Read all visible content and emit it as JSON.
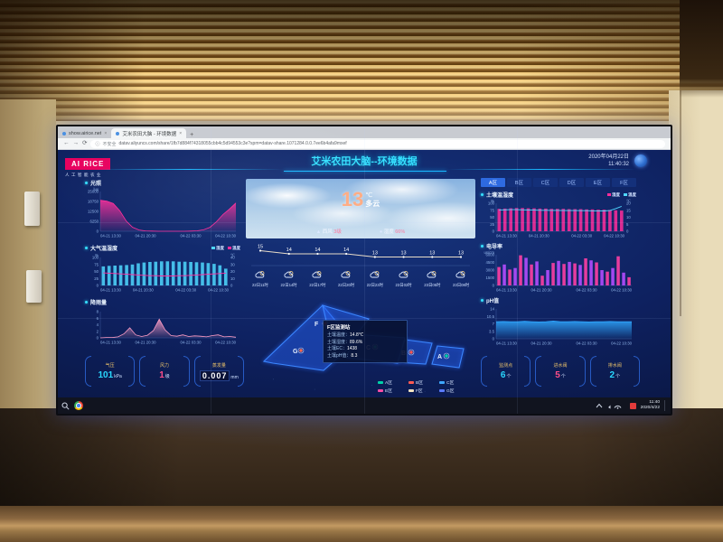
{
  "browser": {
    "tab1": {
      "title": "show.airice.net"
    },
    "tab2": {
      "title": "艾米农田大脑 - 环境数据"
    },
    "security_label": "不安全",
    "url": "datav.aliyuncs.com/share/1fb7d884f74318055cbb4c5d94553c3e?spm=datav-share.1071284.0.0.7ee6b4afa9mxef"
  },
  "header": {
    "logo": "AI RICE",
    "logo_sub": "人工智能农业",
    "title": "艾米农田大脑--环境数据",
    "date": "2020年04月22日",
    "time": "11:40:32"
  },
  "zone_tabs": {
    "items": [
      "A区",
      "B区",
      "C区",
      "D区",
      "E区",
      "F区"
    ],
    "selected": "A区"
  },
  "weather": {
    "temp": "13",
    "temp_unit": "℃",
    "condition": "多云",
    "wind_label": "西风",
    "wind_value": "3级",
    "humidity_label": "湿度",
    "humidity_value": "66%"
  },
  "forecast": {
    "values": [
      15,
      14,
      14,
      14,
      13,
      13,
      13,
      13
    ],
    "labels": [
      "22日11时",
      "22日14时",
      "22日17时",
      "22日20时",
      "22日23时",
      "23日02时",
      "23日05时",
      "23日08时"
    ],
    "icon": "partly-cloudy-icon"
  },
  "charts": {
    "light": {
      "type": "area",
      "title": "光照",
      "unit_left": "lux",
      "color": "#ff2d9b",
      "ylim": [
        0,
        25000
      ],
      "yticks": [
        0,
        6250,
        12500,
        18750,
        25000
      ],
      "x_labels": [
        "04-21 13:30",
        "04-21 20:30",
        "04-22 03:30",
        "04-22 10:30"
      ],
      "values": [
        19500,
        19000,
        17500,
        13000,
        6500,
        2500,
        800,
        200,
        100,
        0,
        0,
        0,
        0,
        0,
        100,
        300,
        900,
        2500,
        6000,
        10500,
        14000,
        17800
      ]
    },
    "atm": {
      "type": "bars_line",
      "title": "大气温湿度",
      "legend": [
        {
          "label": "湿度",
          "color": "#4fd8ff"
        },
        {
          "label": "温度",
          "color": "#ff2d9b"
        }
      ],
      "bar_color": "#4fd8ff",
      "line_color": "#ff2d9b",
      "unit_left": "%",
      "unit_right": "℃",
      "ylim_left": [
        0,
        100
      ],
      "yticks_left": [
        0,
        25,
        50,
        75,
        100
      ],
      "ylim_right": [
        0,
        40
      ],
      "yticks_right": [
        0,
        10,
        20,
        30,
        40
      ],
      "x_labels": [
        "04-21 13:30",
        "04-21 20:30",
        "04-22 03:30",
        "04-22 10:30"
      ],
      "bars": [
        68,
        70,
        71,
        72,
        73,
        75,
        79,
        82,
        84,
        85,
        86,
        86,
        86,
        85,
        85,
        84,
        83,
        82,
        80,
        77,
        72,
        60
      ],
      "line": [
        18,
        17.5,
        17,
        16.5,
        16,
        15.5,
        15,
        14.5,
        14,
        14,
        13.5,
        13.5,
        13.5,
        14,
        14,
        14.5,
        15,
        15.5,
        16,
        16.5,
        17,
        17.5
      ]
    },
    "rain": {
      "type": "area",
      "title": "降雨量",
      "color": "#ff9ec6",
      "ylim": [
        0,
        8
      ],
      "yticks": [
        0,
        2,
        4,
        6,
        8
      ],
      "x_labels": [
        "04-21 13:30",
        "04-21 20:30",
        "04-22 03:30",
        "04-22 10:30"
      ],
      "values": [
        0,
        0.1,
        0.1,
        0.3,
        1.2,
        3.1,
        0.9,
        0.4,
        0.8,
        2.2,
        5.7,
        2.4,
        0.7,
        0.5,
        0.9,
        0.4,
        0.6,
        0.5,
        0.3,
        0.7,
        0.9,
        0.3,
        0.4,
        0.2
      ]
    },
    "soil": {
      "type": "bars_line",
      "title": "土壤温湿度",
      "legend": [
        {
          "label": "湿度",
          "color": "#ff2d9b"
        },
        {
          "label": "温度",
          "color": "#4fd8ff"
        }
      ],
      "bar_color": "#ff2d9b",
      "line_color": "#4fd8ff",
      "unit_left": "%",
      "unit_right": "℃",
      "ylim_left": [
        0,
        100
      ],
      "yticks_left": [
        0,
        25,
        50,
        75,
        100
      ],
      "ylim_right": [
        0,
        20
      ],
      "yticks_right": [
        0,
        5,
        10,
        15,
        20
      ],
      "x_labels": [
        "04-21 13:30",
        "04-21 20:30",
        "04-22 03:30",
        "04-22 10:30"
      ],
      "bars": [
        80,
        81,
        82,
        83,
        83,
        82,
        82,
        81,
        81,
        80,
        80,
        80,
        79,
        79,
        79,
        78,
        78,
        77,
        77,
        76,
        75,
        74
      ],
      "line": [
        15.2,
        15.3,
        15.4,
        15.4,
        15.3,
        15.2,
        15.1,
        15.0,
        15.0,
        14.9,
        14.9,
        14.8,
        14.8,
        14.8,
        14.7,
        14.7,
        14.6,
        14.6,
        14.5,
        14.8,
        16.2,
        17.8
      ]
    },
    "ec": {
      "type": "bars",
      "title": "电导率",
      "unit_left": "us/cm",
      "colors": [
        "#ff3fa4",
        "#b44dff"
      ],
      "ylim": [
        0,
        6000
      ],
      "yticks": [
        0,
        1500,
        3000,
        4500,
        6000
      ],
      "x_labels": [
        "04-21 13:30",
        "04-21 20:30",
        "04-22 03:30",
        "04-22 10:30"
      ],
      "values": [
        3600,
        4100,
        3100,
        3400,
        5900,
        5400,
        4100,
        4700,
        1900,
        3000,
        4400,
        4800,
        4200,
        4600,
        4300,
        4000,
        5300,
        4900,
        4500,
        3000,
        2700,
        3400,
        5700,
        2500,
        1600
      ]
    },
    "ph": {
      "type": "area",
      "title": "pH值",
      "color": "#2fa8ff",
      "ylim": [
        0,
        14
      ],
      "yticks": [
        0,
        3.5,
        7,
        10.5,
        14
      ],
      "x_labels": [
        "04-21 13:30",
        "04-21 20:30",
        "04-22 03:30",
        "04-22 10:30"
      ],
      "values": [
        8.0,
        8.1,
        8.0,
        8.0,
        8.2,
        8.0,
        7.9,
        8.0,
        8.3,
        8.0,
        8.0,
        8.1,
        8.0,
        7.9,
        8.0,
        8.0,
        8.1,
        8.0,
        8.0,
        8.0
      ]
    }
  },
  "map": {
    "tooltip": {
      "title": "F区监测站",
      "rows": [
        {
          "label": "土壤温度：",
          "value": "14.8℃"
        },
        {
          "label": "土壤湿度：",
          "value": "89.6%"
        },
        {
          "label": "土壤EC：",
          "value": "1438"
        },
        {
          "label": "土壤pH值：",
          "value": "8.3"
        }
      ]
    },
    "zones": [
      {
        "id": "A",
        "label": "A区",
        "color": "#00d2a8"
      },
      {
        "id": "B",
        "label": "B区",
        "color": "#ff5a52"
      },
      {
        "id": "C",
        "label": "C区",
        "color": "#3fa8ff"
      },
      {
        "id": "E",
        "label": "E区",
        "color": "#ff4da6"
      },
      {
        "id": "F",
        "label": "F区",
        "color": "#f2e3c2"
      },
      {
        "id": "G",
        "label": "G区",
        "color": "#5b7bff"
      }
    ]
  },
  "stats_left": [
    {
      "label": "气压",
      "value": "101",
      "unit": "kPa",
      "color": "#29d8ff"
    },
    {
      "label": "风力",
      "value": "1",
      "unit": "级",
      "color": "#ff4d88"
    },
    {
      "label": "蒸发量",
      "value": "0.007",
      "unit": "mm",
      "color": "#ffffff"
    }
  ],
  "stats_right": [
    {
      "label": "监测点",
      "value": "6",
      "unit": "个",
      "color": "#29d8ff"
    },
    {
      "label": "进水阀",
      "value": "5",
      "unit": "个",
      "color": "#ff4d88"
    },
    {
      "label": "排水阀",
      "value": "2",
      "unit": "个",
      "color": "#29d8ff"
    }
  ],
  "taskbar": {
    "time": "11:40",
    "date": "2020/4/22"
  }
}
